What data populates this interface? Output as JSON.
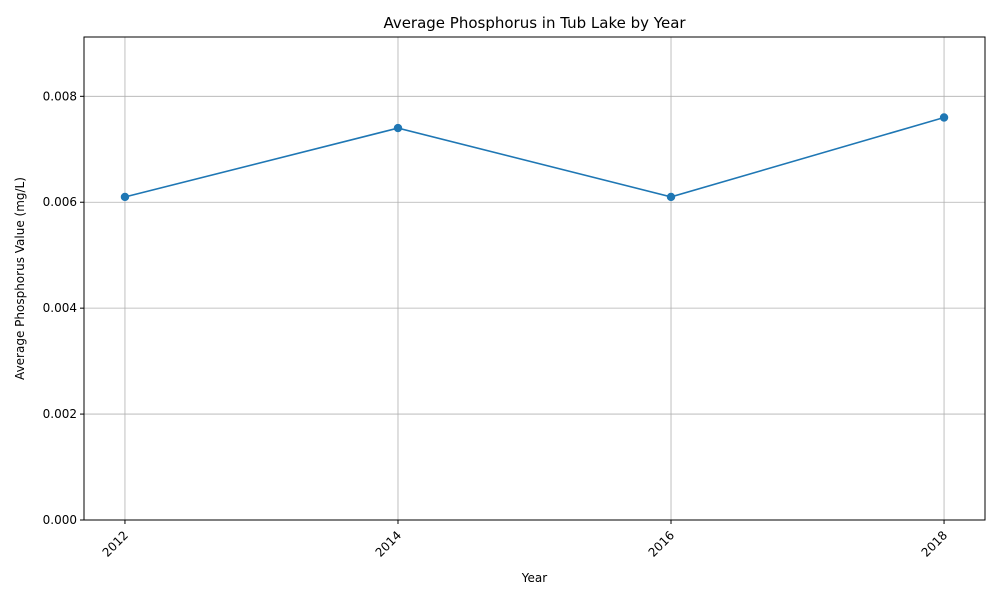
{
  "chart_data": {
    "type": "line",
    "title": "Average Phosphorus in Tub Lake by Year",
    "xlabel": "Year",
    "ylabel": "Average Phosphorus Value (mg/L)",
    "x": [
      2012,
      2014,
      2016,
      2018
    ],
    "xticks": [
      "2012",
      "2014",
      "2016",
      "2018"
    ],
    "yticks": [
      "0.000",
      "0.002",
      "0.004",
      "0.006",
      "0.008"
    ],
    "ytick_values": [
      0,
      0.002,
      0.004,
      0.006,
      0.008
    ],
    "series": [
      {
        "values": [
          0.0061,
          0.0074,
          0.0061,
          0.0076
        ]
      }
    ],
    "xlim": [
      2011.7,
      2018.3
    ],
    "ylim": [
      0,
      0.00912
    ],
    "grid": true,
    "line_color": "#1f77b4",
    "grid_color": "#b0b0b0",
    "marker": "circle"
  }
}
